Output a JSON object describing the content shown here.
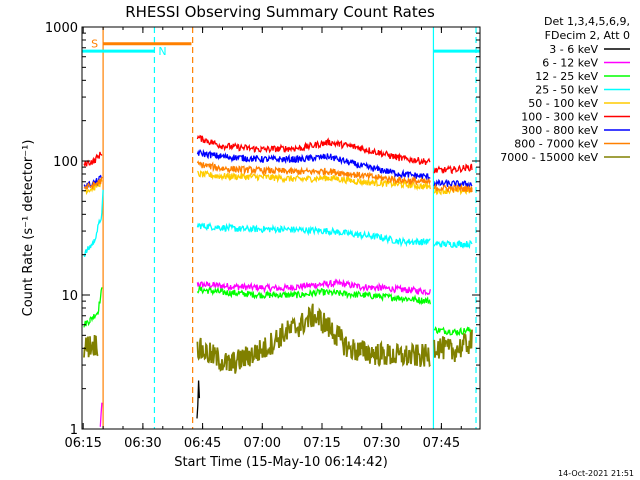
{
  "chart_data": {
    "type": "line",
    "title": "RHESSI Observing Summary Count Rates",
    "xlabel": "Start Time (15-May-10 06:14:42)",
    "ylabel": "Count Rate (s⁻¹ detector⁻¹)",
    "yscale": "log",
    "ylim": [
      1,
      1000
    ],
    "xlim_minutes": [
      0,
      100
    ],
    "x_ticks": [
      {
        "label": "06:15",
        "min": 0.3
      },
      {
        "label": "06:30",
        "min": 15.3
      },
      {
        "label": "06:45",
        "min": 30.3
      },
      {
        "label": "07:00",
        "min": 45.3
      },
      {
        "label": "07:15",
        "min": 60.3
      },
      {
        "label": "07:30",
        "min": 75.3
      },
      {
        "label": "07:45",
        "min": 90.3
      }
    ],
    "y_ticks": [
      {
        "label": "1",
        "value": 1
      },
      {
        "label": "10",
        "value": 10
      },
      {
        "label": "100",
        "value": 100
      },
      {
        "label": "1000",
        "value": 1000
      }
    ],
    "legend_header": [
      "Det 1,3,4,5,6,9,",
      "FDecim 2, Att 0"
    ],
    "gaps_minutes": [
      [
        5.3,
        28.5
      ],
      [
        87.8,
        88.3
      ]
    ],
    "series": [
      {
        "name": "3 - 6 keV",
        "color": "#000000",
        "points": [
          [
            28.9,
            1.2
          ],
          [
            29.1,
            1.5
          ],
          [
            29.3,
            2.3
          ],
          [
            29.5,
            1.7
          ]
        ]
      },
      {
        "name": "6 - 12 keV",
        "color": "#ff00ff",
        "points": [
          [
            4.6,
            1.0
          ],
          [
            5.0,
            1.6
          ],
          [
            29.0,
            12
          ],
          [
            40,
            11.5
          ],
          [
            50,
            11.2
          ],
          [
            60,
            12
          ],
          [
            65,
            12.2
          ],
          [
            70,
            11.5
          ],
          [
            75,
            11.3
          ],
          [
            80,
            11
          ],
          [
            87.5,
            10.6
          ]
        ]
      },
      {
        "name": "12 - 25 keV",
        "color": "#00ff00",
        "points": [
          [
            0.5,
            6
          ],
          [
            2,
            6.5
          ],
          [
            4,
            7.5
          ],
          [
            5,
            11
          ],
          [
            29,
            11
          ],
          [
            35,
            10.5
          ],
          [
            45,
            10
          ],
          [
            55,
            10
          ],
          [
            60,
            10.5
          ],
          [
            70,
            10
          ],
          [
            80,
            9.5
          ],
          [
            87.5,
            9
          ],
          [
            88.5,
            5.5
          ],
          [
            94,
            5.3
          ],
          [
            98,
            5.5
          ]
        ]
      },
      {
        "name": "25 - 50 keV",
        "color": "#00ffff",
        "points": [
          [
            0.5,
            20
          ],
          [
            3,
            25
          ],
          [
            5,
            40
          ],
          [
            5.3,
            60
          ],
          [
            29,
            33
          ],
          [
            40,
            31
          ],
          [
            50,
            31
          ],
          [
            62,
            30
          ],
          [
            70,
            28
          ],
          [
            75,
            27
          ],
          [
            80,
            25
          ],
          [
            87.5,
            25
          ],
          [
            88.5,
            24
          ],
          [
            98,
            24
          ]
        ]
      },
      {
        "name": "50 - 100 keV",
        "color": "#ffcc00",
        "points": [
          [
            0.5,
            60
          ],
          [
            3,
            63
          ],
          [
            5,
            70
          ],
          [
            29,
            80
          ],
          [
            35,
            77
          ],
          [
            45,
            76
          ],
          [
            55,
            73
          ],
          [
            62,
            75
          ],
          [
            70,
            70
          ],
          [
            80,
            67
          ],
          [
            87.5,
            64
          ],
          [
            88.5,
            60
          ],
          [
            98,
            60
          ]
        ]
      },
      {
        "name": "100 - 300 keV",
        "color": "#ff0000",
        "points": [
          [
            0.5,
            95
          ],
          [
            3,
            100
          ],
          [
            5,
            115
          ],
          [
            29,
            150
          ],
          [
            35,
            130
          ],
          [
            45,
            122
          ],
          [
            55,
            125
          ],
          [
            62,
            138
          ],
          [
            70,
            125
          ],
          [
            80,
            105
          ],
          [
            87.5,
            98
          ],
          [
            88.5,
            85
          ],
          [
            93,
            86
          ],
          [
            98,
            90
          ]
        ]
      },
      {
        "name": "300 - 800 keV",
        "color": "#0000ff",
        "points": [
          [
            0.5,
            65
          ],
          [
            3,
            68
          ],
          [
            5,
            75
          ],
          [
            29,
            115
          ],
          [
            35,
            108
          ],
          [
            45,
            103
          ],
          [
            55,
            103
          ],
          [
            62,
            108
          ],
          [
            70,
            92
          ],
          [
            80,
            80
          ],
          [
            87.5,
            76
          ],
          [
            88.5,
            68
          ],
          [
            98,
            67
          ]
        ]
      },
      {
        "name": "800 - 7000 keV",
        "color": "#ff8000",
        "points": [
          [
            0.5,
            63
          ],
          [
            3,
            66
          ],
          [
            5,
            72
          ],
          [
            29,
            95
          ],
          [
            35,
            88
          ],
          [
            45,
            85
          ],
          [
            55,
            83
          ],
          [
            62,
            84
          ],
          [
            70,
            78
          ],
          [
            80,
            72
          ],
          [
            87.5,
            69
          ],
          [
            88.5,
            63
          ],
          [
            98,
            62
          ]
        ]
      },
      {
        "name": "7000 - 15000 keV",
        "color": "#808000",
        "points": [
          [
            0.5,
            4
          ],
          [
            2,
            4.2
          ],
          [
            4,
            4.3
          ],
          [
            29,
            4
          ],
          [
            33,
            3.5
          ],
          [
            37,
            3.0
          ],
          [
            42,
            3.5
          ],
          [
            46,
            4
          ],
          [
            50,
            5
          ],
          [
            55,
            6
          ],
          [
            58,
            7
          ],
          [
            60,
            6.5
          ],
          [
            64,
            5
          ],
          [
            67,
            4
          ],
          [
            70,
            3.8
          ],
          [
            75,
            3.6
          ],
          [
            80,
            3.5
          ],
          [
            87.5,
            3.5
          ],
          [
            88.5,
            4.2
          ],
          [
            93,
            3.8
          ],
          [
            98,
            4.5
          ]
        ]
      }
    ],
    "flags": {
      "saa_top": {
        "label": "S",
        "color": "#ff8000",
        "start_min": 5.3,
        "end_min": 27.5,
        "y_value": 750
      },
      "night_top": {
        "label": "N",
        "color": "#00ffff",
        "segments": [
          [
            0,
            18.2
          ],
          [
            88.3,
            100
          ]
        ],
        "y_value": 660
      },
      "vertical_lines": [
        {
          "min": 5.3,
          "color": "#ff8000",
          "dashed": false
        },
        {
          "min": 18.2,
          "color": "#00ffff",
          "dashed": true
        },
        {
          "min": 27.8,
          "color": "#ff8000",
          "dashed": true
        },
        {
          "min": 88.3,
          "color": "#00ffff",
          "dashed": false
        },
        {
          "min": 99.0,
          "color": "#00ffff",
          "dashed": true
        }
      ]
    }
  },
  "footer": {
    "timestamp": "14-Oct-2021 21:51"
  }
}
